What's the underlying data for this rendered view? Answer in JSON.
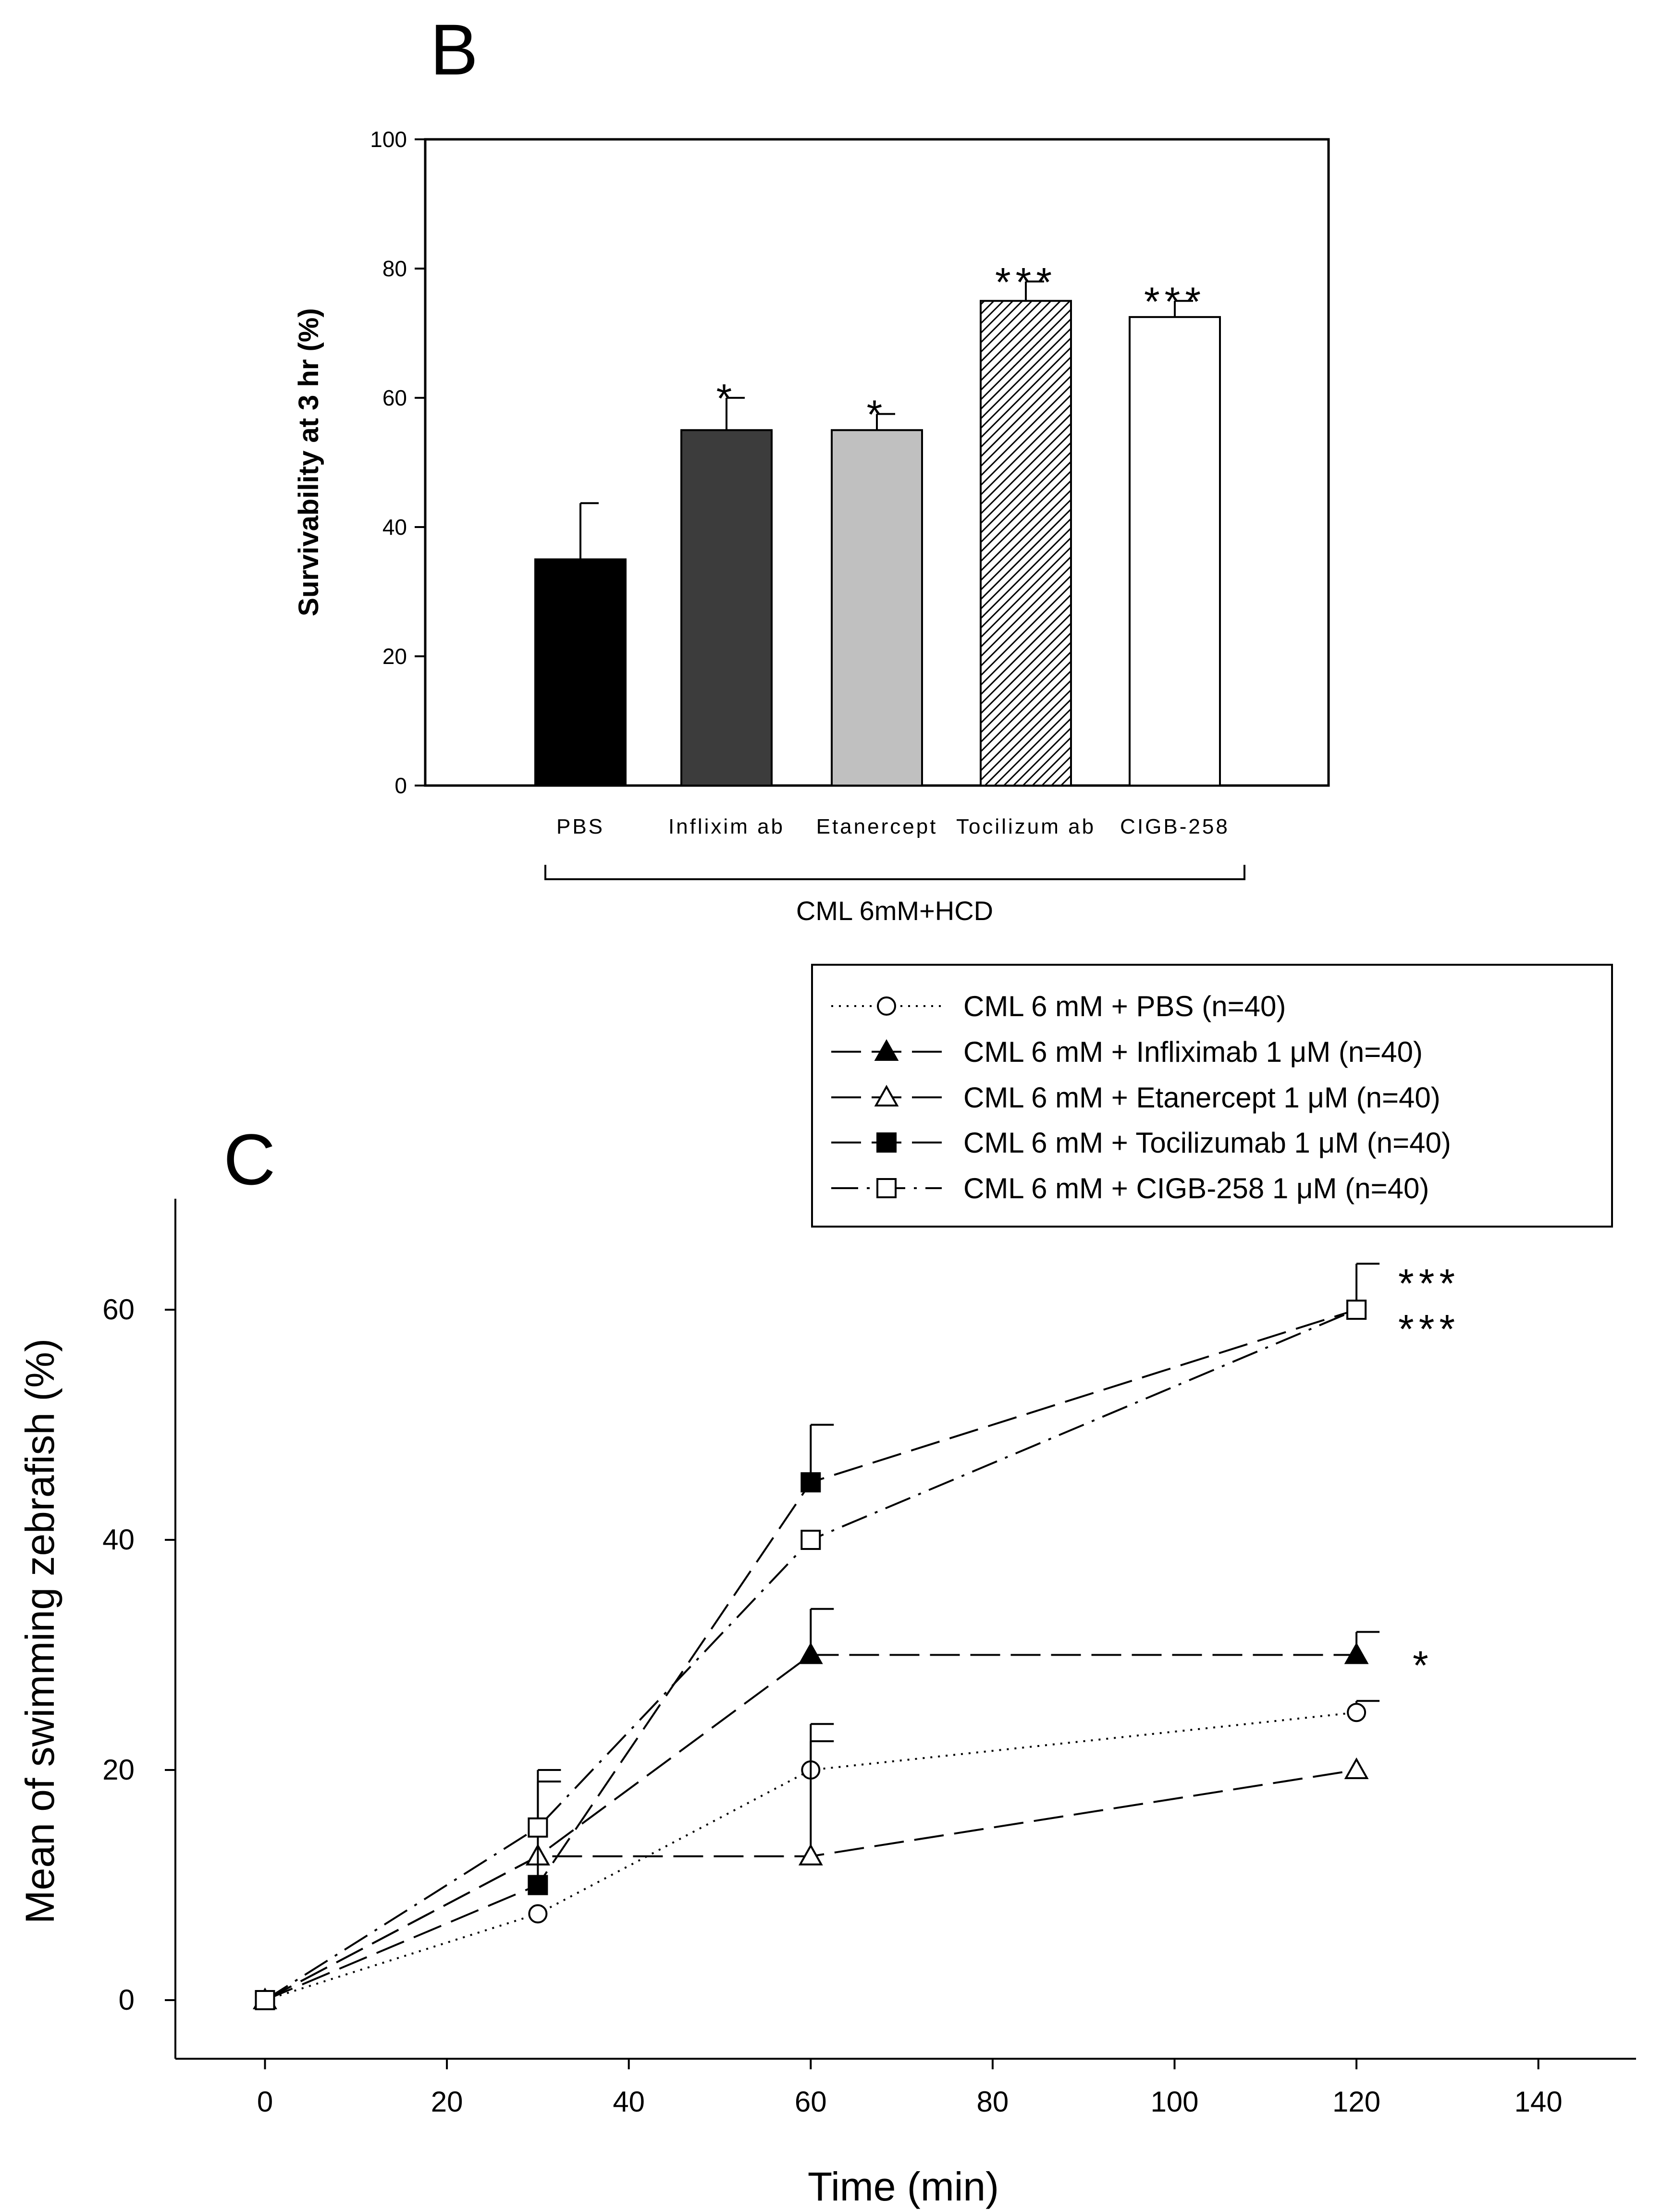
{
  "panel_b": {
    "letter": "B",
    "significance": [
      "",
      "*",
      "*",
      "***",
      "***"
    ],
    "bracket_label": "CML 6mM+HCD"
  },
  "panel_c": {
    "letter": "C",
    "significance": [
      "***",
      "***",
      "*"
    ]
  },
  "chart_data": [
    {
      "type": "bar",
      "title": "",
      "xlabel": "",
      "ylabel": "Survivability at 3 hr (%)",
      "ylim": [
        0,
        100
      ],
      "yticks": [
        0,
        20,
        40,
        60,
        80,
        100
      ],
      "categories": [
        "PBS",
        "Inflixim ab",
        "Etanercept",
        "Tocilizum ab",
        "CIGB-258"
      ],
      "values": [
        35,
        55,
        55,
        75,
        72.5
      ],
      "errors": [
        8.7,
        5,
        2.5,
        3,
        2.5
      ],
      "bar_styles": [
        {
          "fill": "#000000"
        },
        {
          "fill": "#3c3c3c"
        },
        {
          "fill": "#c0c0c0"
        },
        {
          "fill": "hatch"
        },
        {
          "fill": "#ffffff"
        }
      ],
      "grid": false
    },
    {
      "type": "line",
      "title": "",
      "xlabel": "Time (min)",
      "ylabel": "Mean of swimming zebrafish (%)",
      "xlim": [
        -10,
        150
      ],
      "ylim": [
        -5,
        70
      ],
      "xticks": [
        0,
        20,
        40,
        60,
        80,
        100,
        120,
        140
      ],
      "yticks": [
        0,
        20,
        40,
        60
      ],
      "x": [
        0,
        30,
        60,
        120
      ],
      "legend_position": "top-right",
      "grid": false,
      "series": [
        {
          "name": "CML 6 mM + PBS (n=40)",
          "marker": "circle-open",
          "dash": "dot",
          "values": [
            0,
            7.5,
            20,
            25
          ],
          "errors": [
            0,
            0,
            4,
            1
          ]
        },
        {
          "name": "CML 6 mM + Infliximab 1 μM (n=40)",
          "marker": "triangle-filled",
          "dash": "longdash",
          "values": [
            0,
            12.5,
            30,
            30
          ],
          "errors": [
            0,
            0,
            4,
            2
          ]
        },
        {
          "name": "CML 6 mM + Etanercept 1 μM (n=40)",
          "marker": "triangle-open",
          "dash": "longdash",
          "values": [
            0,
            12.5,
            12.5,
            20
          ],
          "errors": [
            0,
            0,
            10,
            0
          ]
        },
        {
          "name": "CML 6 mM + Tocilizumab 1 μM (n=40)",
          "marker": "square-filled",
          "dash": "longdash",
          "values": [
            0,
            10,
            45,
            60
          ],
          "errors": [
            0,
            9,
            5,
            4
          ]
        },
        {
          "name": "CML 6 mM + CIGB-258 1 μM (n=40)",
          "marker": "square-open",
          "dash": "dashdot",
          "values": [
            0,
            15,
            40,
            60
          ],
          "errors": [
            0,
            5,
            0,
            0
          ]
        }
      ]
    }
  ]
}
